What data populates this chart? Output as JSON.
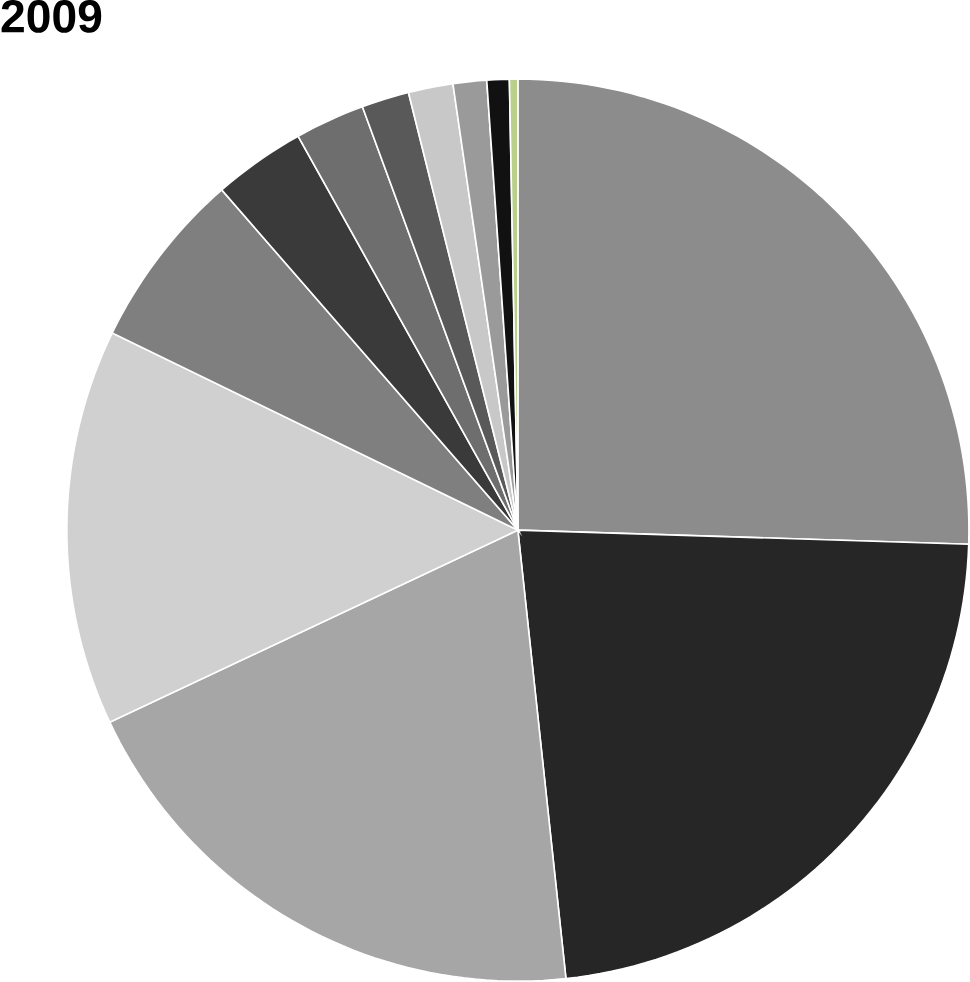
{
  "chart_data": {
    "type": "pie",
    "title": "2009",
    "categories": [
      null,
      null,
      null,
      null,
      null,
      null,
      null,
      null,
      null,
      null,
      null,
      null
    ],
    "values": [
      25.5,
      22.8,
      19.7,
      14.2,
      6.4,
      3.3,
      2.5,
      1.7,
      1.6,
      1.2,
      0.8,
      0.3
    ],
    "colors": [
      "#8c8c8c",
      "#262626",
      "#a6a6a6",
      "#d0d0d0",
      "#7f7f7f",
      "#3a3a3a",
      "#6e6e6e",
      "#595959",
      "#c8c8c8",
      "#9a9a9a",
      "#111111",
      "#b8d08a"
    ]
  }
}
